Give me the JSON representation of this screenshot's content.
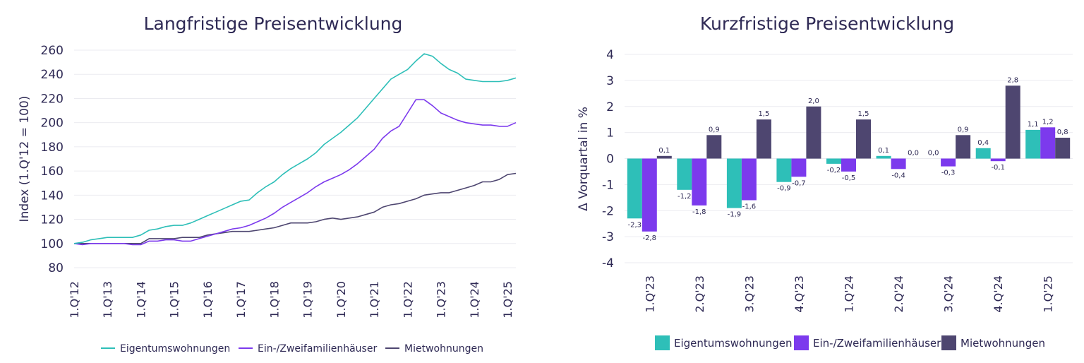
{
  "colors": {
    "Eigentumswohnungen": "#2ebfb8",
    "Ein-/Zweifamilienhäuser": "#7c3aed",
    "Mietwohnungen": "#4e4670"
  },
  "chart_data": [
    {
      "type": "line",
      "title": "Langfristige Preisentwicklung",
      "ylabel": "Index (1.Q'12 = 100)",
      "xlabel": "",
      "ylim": [
        80,
        260
      ],
      "yticks": [
        "80",
        "100",
        "120",
        "140",
        "160",
        "180",
        "200",
        "220",
        "240",
        "260"
      ],
      "xtick_labels": [
        "1.Q'12",
        "1.Q'13",
        "1.Q'14",
        "1.Q'15",
        "1.Q'16",
        "1.Q'17",
        "1.Q'18",
        "1.Q'19",
        "1.Q'20",
        "1.Q'21",
        "1.Q'22",
        "1.Q'23",
        "1.Q'24",
        "1.Q'25"
      ],
      "grid": true,
      "legend": "bottom",
      "series": [
        {
          "name": "Eigentumswohnungen",
          "values": [
            100,
            101,
            103,
            104,
            105,
            105,
            105,
            105,
            107,
            111,
            112,
            114,
            115,
            115,
            117,
            120,
            123,
            126,
            129,
            132,
            135,
            136,
            142,
            147,
            151,
            157,
            162,
            166,
            170,
            175,
            182,
            187,
            192,
            198,
            204,
            212,
            220,
            228,
            236,
            240,
            244,
            251,
            257,
            255,
            249,
            244,
            241,
            236,
            235,
            234,
            234,
            234,
            235,
            237
          ]
        },
        {
          "name": "Ein-/Zweifamilienhäuser",
          "values": [
            100,
            99,
            100,
            100,
            100,
            100,
            100,
            99,
            99,
            102,
            102,
            103,
            103,
            102,
            102,
            104,
            106,
            108,
            110,
            112,
            113,
            115,
            118,
            121,
            125,
            130,
            134,
            138,
            142,
            147,
            151,
            154,
            157,
            161,
            166,
            172,
            178,
            187,
            193,
            197,
            208,
            219,
            219,
            214,
            208,
            205,
            202,
            200,
            199,
            198,
            198,
            197,
            197,
            200
          ]
        },
        {
          "name": "Mietwohnungen",
          "values": [
            100,
            100,
            100,
            100,
            100,
            100,
            100,
            100,
            100,
            104,
            104,
            104,
            104,
            105,
            105,
            105,
            107,
            108,
            109,
            110,
            110,
            110,
            111,
            112,
            113,
            115,
            117,
            117,
            117,
            118,
            120,
            121,
            120,
            121,
            122,
            124,
            126,
            130,
            132,
            133,
            135,
            137,
            140,
            141,
            142,
            142,
            144,
            146,
            148,
            151,
            151,
            153,
            157,
            158
          ]
        }
      ]
    },
    {
      "type": "bar",
      "title": "Kurzfristige Preisentwicklung",
      "ylabel": "Δ Vorquartal in %",
      "xlabel": "",
      "ylim": [
        -4,
        4
      ],
      "yticks": [
        "-4",
        "-3",
        "-2",
        "-1",
        "0",
        "1",
        "2",
        "3",
        "4"
      ],
      "categories": [
        "1.Q'23",
        "2.Q'23",
        "3.Q'23",
        "4.Q'23",
        "1.Q'24",
        "2.Q'24",
        "3.Q'24",
        "4.Q'24",
        "1.Q'25"
      ],
      "grid": true,
      "legend": "bottom",
      "series": [
        {
          "name": "Eigentumswohnungen",
          "values": [
            -2.3,
            -1.2,
            -1.9,
            -0.9,
            -0.2,
            0.1,
            0.0,
            0.4,
            1.1
          ],
          "labels": [
            "-2,3",
            "-1,2",
            "-1,9",
            "-0,9",
            "-0,2",
            "0,1",
            "0,0",
            "0,4",
            "1,1"
          ]
        },
        {
          "name": "Ein-/Zweifamilienhäuser",
          "values": [
            -2.8,
            -1.8,
            -1.6,
            -0.7,
            -0.5,
            -0.4,
            -0.3,
            -0.1,
            1.2
          ],
          "labels": [
            "-2,8",
            "-1,8",
            "-1,6",
            "-0,7",
            "-0,5",
            "-0,4",
            "-0,3",
            "-0,1",
            "1,2"
          ]
        },
        {
          "name": "Mietwohnungen",
          "values": [
            0.1,
            0.9,
            1.5,
            2.0,
            1.5,
            0.0,
            0.9,
            2.8,
            0.8
          ],
          "labels": [
            "0,1",
            "0,9",
            "1,5",
            "2,0",
            "1,5",
            "0,0",
            "0,9",
            "2,8",
            "0,8"
          ]
        }
      ]
    }
  ]
}
